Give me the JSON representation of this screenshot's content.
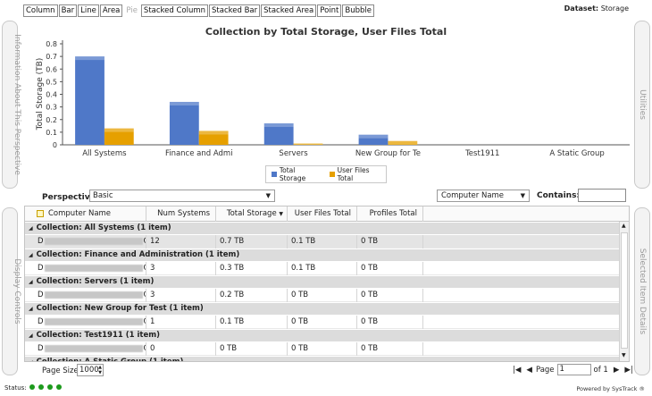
{
  "chart_types": [
    "Column",
    "Bar",
    "Line",
    "Area",
    "Pie",
    "Stacked Column",
    "Stacked Bar",
    "Stacked Area",
    "Point",
    "Bubble"
  ],
  "dataset": {
    "label": "Dataset:",
    "value": "Storage"
  },
  "side_panels": {
    "left_top": "Information About This Perspective",
    "left_bottom": "Display Controls",
    "right_top": "Utilities",
    "right_bottom": "Selected Item Details"
  },
  "chart_data": {
    "type": "bar",
    "title": "Collection by Total Storage, User Files Total",
    "ylabel": "Total Storage (TB)",
    "xlabel": "",
    "ylim": [
      0,
      0.8
    ],
    "yticks": [
      "0",
      "0.1",
      "0.2",
      "0.3",
      "0.4",
      "0.5",
      "0.6",
      "0.7",
      "0.8"
    ],
    "categories": [
      "All Systems",
      "Finance and Admi",
      "Servers",
      "New Group for Te",
      "Test1911",
      "A Static Group"
    ],
    "series": [
      {
        "name": "Total Storage",
        "values": [
          0.7,
          0.34,
          0.17,
          0.08,
          0,
          0
        ],
        "color": "#4f78c8"
      },
      {
        "name": "User Files Total",
        "values": [
          0.13,
          0.11,
          0.01,
          0.03,
          0,
          0
        ],
        "color": "#e6a000"
      }
    ],
    "legend_position": "bottom"
  },
  "filters": {
    "perspective_label": "Perspective",
    "perspective_value": "Basic",
    "search_field_value": "Computer Name",
    "contains_label": "Contains:",
    "contains_value": ""
  },
  "grid": {
    "columns": [
      "Computer Name",
      "Num Systems",
      "Total Storage",
      "User Files Total",
      "Profiles Total"
    ],
    "groups": [
      {
        "title": "Collection: All Systems (1 item)",
        "row": {
          "name_start": "D",
          "name_end": "G",
          "num": "12",
          "total": "0.7 TB",
          "user": "0.1 TB",
          "profiles": "0 TB"
        }
      },
      {
        "title": "Collection: Finance and Administration (1 item)",
        "row": {
          "name_start": "D",
          "name_end": "G",
          "num": "3",
          "total": "0.3 TB",
          "user": "0.1 TB",
          "profiles": "0 TB"
        }
      },
      {
        "title": "Collection: Servers (1 item)",
        "row": {
          "name_start": "D",
          "name_end": "G",
          "num": "3",
          "total": "0.2 TB",
          "user": "0 TB",
          "profiles": "0 TB"
        }
      },
      {
        "title": "Collection: New Group for Test (1 item)",
        "row": {
          "name_start": "D",
          "name_end": "G",
          "num": "1",
          "total": "0.1 TB",
          "user": "0 TB",
          "profiles": "0 TB"
        }
      },
      {
        "title": "Collection: Test1911 (1 item)",
        "row": {
          "name_start": "D",
          "name_end": "G",
          "num": "0",
          "total": "0 TB",
          "user": "0 TB",
          "profiles": "0 TB"
        }
      },
      {
        "title": "Collection: A Static Group (1 item)"
      }
    ]
  },
  "footer": {
    "page_size_label": "Page Size",
    "page_size_value": "1000",
    "page_label": "Page",
    "page_value": "1",
    "page_of": "of 1",
    "status_label": "Status:",
    "powered_by": "Powered by SysTrack"
  }
}
